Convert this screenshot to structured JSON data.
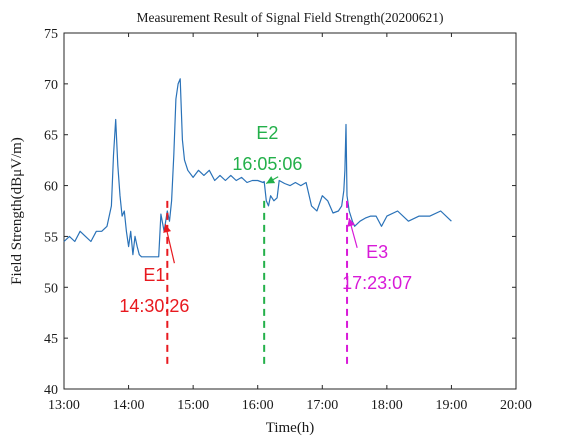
{
  "chart_data": {
    "type": "line",
    "title": "Measurement Result of Signal Field Strength(20200621)",
    "xlabel": "Time(h)",
    "ylabel": "Field Strength(dBμV/m)",
    "xlim": [
      "13:00",
      "20:00"
    ],
    "ylim": [
      40,
      75
    ],
    "x_ticks": [
      "13:00",
      "14:00",
      "15:00",
      "16:00",
      "17:00",
      "18:00",
      "19:00",
      "20:00"
    ],
    "y_ticks": [
      "40",
      "45",
      "50",
      "55",
      "60",
      "65",
      "70",
      "75"
    ],
    "grid": false,
    "series": [
      {
        "color": "#2a72b8",
        "x": [
          "13:00",
          "13:05",
          "13:10",
          "13:15",
          "13:20",
          "13:25",
          "13:30",
          "13:35",
          "13:40",
          "13:44",
          "13:46",
          "13:48",
          "13:50",
          "13:52",
          "13:54",
          "13:56",
          "13:58",
          "14:00",
          "14:02",
          "14:04",
          "14:06",
          "14:08",
          "14:10",
          "14:12",
          "14:20",
          "14:28",
          "14:30",
          "14:33",
          "14:36",
          "14:38",
          "14:40",
          "14:42",
          "14:44",
          "14:46",
          "14:48",
          "14:50",
          "14:52",
          "14:55",
          "15:00",
          "15:05",
          "15:10",
          "15:15",
          "15:20",
          "15:25",
          "15:30",
          "15:35",
          "15:40",
          "15:45",
          "15:50",
          "15:55",
          "16:00",
          "16:05",
          "16:06",
          "16:08",
          "16:10",
          "16:12",
          "16:15",
          "16:18",
          "16:20",
          "16:25",
          "16:30",
          "16:35",
          "16:40",
          "16:45",
          "16:50",
          "16:55",
          "17:00",
          "17:05",
          "17:10",
          "17:15",
          "17:18",
          "17:20",
          "17:21",
          "17:22",
          "17:23",
          "17:25",
          "17:28",
          "17:30",
          "17:35",
          "17:40",
          "17:45",
          "17:50",
          "17:55",
          "18:00",
          "18:10",
          "18:20",
          "18:30",
          "18:40",
          "18:50",
          "19:00"
        ],
        "y": [
          54.5,
          55.0,
          54.5,
          55.5,
          55.0,
          54.5,
          55.5,
          55.5,
          56.0,
          58.0,
          63.0,
          66.5,
          62.0,
          59.0,
          57.0,
          57.5,
          55.5,
          54.0,
          55.5,
          53.2,
          55.0,
          54.0,
          53.2,
          53.0,
          53.0,
          53.0,
          57.2,
          55.5,
          57.5,
          56.5,
          58.5,
          63.0,
          68.5,
          70.0,
          70.5,
          64.5,
          62.5,
          61.5,
          60.8,
          61.5,
          61.0,
          61.5,
          60.5,
          61.0,
          60.5,
          61.0,
          60.5,
          60.8,
          60.3,
          60.5,
          60.5,
          60.3,
          60.4,
          58.5,
          58.0,
          59.0,
          58.5,
          58.8,
          60.5,
          60.2,
          60.0,
          60.3,
          60.0,
          60.3,
          58.0,
          57.5,
          59.0,
          58.5,
          57.3,
          57.5,
          58.0,
          59.5,
          61.5,
          66.0,
          59.0,
          57.5,
          56.5,
          56.0,
          56.5,
          56.8,
          57.0,
          57.0,
          56.0,
          57.0,
          57.5,
          56.5,
          57.0,
          57.0,
          57.5,
          56.5
        ]
      }
    ],
    "annotations": [
      {
        "label": "E1",
        "time": "14:30:26",
        "x": "14:36",
        "color": "#e8191f",
        "text_x": "14:24",
        "text_y": 50.6
      },
      {
        "label": "E2",
        "time": "16:05:06",
        "x": "16:06",
        "color": "#23b04a",
        "text_x": "16:09",
        "text_y": 64.6
      },
      {
        "label": "E3",
        "time": "17:23:07",
        "x": "17:23",
        "color": "#d81ad8",
        "text_x": "17:51",
        "text_y": 52.9
      }
    ]
  }
}
